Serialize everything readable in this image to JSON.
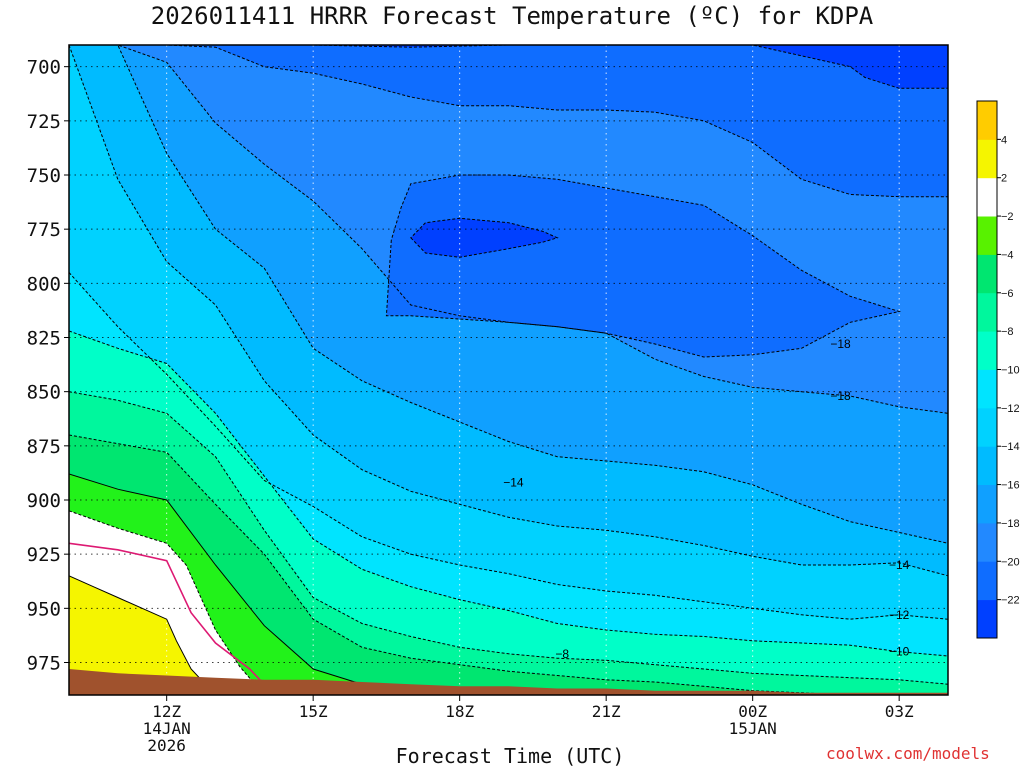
{
  "title": "2026011411 HRRR Forecast Temperature (ºC) for KDPA",
  "x_axis_title": "Forecast Time (UTC)",
  "credit": "coolwx.com/models",
  "chart_data": {
    "type": "heatmap",
    "title": "2026011411 HRRR Forecast Temperature (ºC) for KDPA",
    "xlabel": "Forecast Time (UTC)",
    "ylabel": "",
    "x_units": "hours since 11Z 14JAN2026",
    "y_units": "hPa",
    "xlim": [
      -1.0,
      17.0
    ],
    "ylim": [
      690,
      990
    ],
    "y_ticks": [
      700,
      725,
      750,
      775,
      800,
      825,
      850,
      875,
      900,
      925,
      950,
      975
    ],
    "x_ticks": [
      {
        "x": 1,
        "label": [
          "12Z",
          "14JAN",
          "2026"
        ]
      },
      {
        "x": 4,
        "label": [
          "15Z"
        ]
      },
      {
        "x": 7,
        "label": [
          "18Z"
        ]
      },
      {
        "x": 10,
        "label": [
          "21Z"
        ]
      },
      {
        "x": 13,
        "label": [
          "00Z",
          "15JAN"
        ]
      },
      {
        "x": 16,
        "label": [
          "03Z"
        ]
      }
    ],
    "grid": true,
    "colorbar": {
      "colors": [
        "#0040ff",
        "#0f6dff",
        "#2289ff",
        "#10a0ff",
        "#00bbff",
        "#00d2ff",
        "#00e4ff",
        "#00ffc8",
        "#00f79d",
        "#00e670",
        "#58f200",
        "#ffffff",
        "#f5f500",
        "#ffcc00"
      ],
      "labels": [
        {
          "v": 1,
          "t": "−22"
        },
        {
          "v": 2,
          "t": "−20"
        },
        {
          "v": 3,
          "t": "−18"
        },
        {
          "v": 4,
          "t": "−16"
        },
        {
          "v": 5,
          "t": "−14"
        },
        {
          "v": 6,
          "t": "−12"
        },
        {
          "v": 7,
          "t": "−10"
        },
        {
          "v": 8,
          "t": "−8"
        },
        {
          "v": 9,
          "t": "−6"
        },
        {
          "v": 10,
          "t": "−4"
        },
        {
          "v": 11,
          "t": "−2"
        },
        {
          "v": 12,
          "t": "2"
        },
        {
          "v": 13,
          "t": "4"
        }
      ]
    },
    "bands": [
      {
        "name": "below-minus22",
        "color": "#0f6dff",
        "level": -22,
        "line": "dashed",
        "pts": [
          [
            -1,
            690
          ],
          [
            0,
            690
          ],
          [
            2,
            690
          ],
          [
            4,
            690
          ],
          [
            6,
            691
          ],
          [
            8,
            690
          ],
          [
            10,
            690
          ],
          [
            12,
            690
          ],
          [
            13,
            690
          ],
          [
            14,
            695
          ],
          [
            15,
            700
          ],
          [
            15.3,
            705
          ],
          [
            16,
            710
          ],
          [
            17,
            710
          ]
        ]
      },
      {
        "name": "below-minus20",
        "color": "#2289ff",
        "level": -20,
        "line": "dashed",
        "pts": [
          [
            -1,
            690
          ],
          [
            0,
            690
          ],
          [
            1,
            690
          ],
          [
            2,
            691
          ],
          [
            3,
            700
          ],
          [
            4,
            703
          ],
          [
            5,
            708
          ],
          [
            6,
            714
          ],
          [
            7,
            718
          ],
          [
            8,
            718
          ],
          [
            9,
            720
          ],
          [
            10,
            720
          ],
          [
            11,
            721
          ],
          [
            12,
            725
          ],
          [
            13,
            735
          ],
          [
            14,
            752
          ],
          [
            15,
            759
          ],
          [
            16,
            760
          ],
          [
            17,
            760
          ]
        ]
      },
      {
        "name": "below-minus18",
        "color": "#10a0ff",
        "level": -18,
        "line": "dashed",
        "pts": [
          [
            -1,
            690
          ],
          [
            0,
            690
          ],
          [
            1,
            698
          ],
          [
            2,
            726
          ],
          [
            3,
            745
          ],
          [
            4,
            762
          ],
          [
            5,
            784
          ],
          [
            6,
            810
          ],
          [
            7,
            815
          ],
          [
            8,
            818
          ],
          [
            9,
            820
          ],
          [
            10,
            823
          ],
          [
            11,
            835
          ],
          [
            12,
            843
          ],
          [
            13,
            848
          ],
          [
            14,
            850
          ],
          [
            15,
            852
          ],
          [
            16,
            857
          ],
          [
            17,
            860
          ]
        ]
      },
      {
        "name": "below-minus16",
        "color": "#00bbff",
        "level": -16,
        "line": "dashed",
        "pts": [
          [
            -1,
            690
          ],
          [
            0,
            690
          ],
          [
            1,
            740
          ],
          [
            2,
            775
          ],
          [
            3,
            793
          ],
          [
            4,
            830
          ],
          [
            5,
            845
          ],
          [
            6,
            855
          ],
          [
            7,
            864
          ],
          [
            8,
            873
          ],
          [
            9,
            880
          ],
          [
            10,
            882
          ],
          [
            11,
            884
          ],
          [
            12,
            887
          ],
          [
            13,
            893
          ],
          [
            14,
            902
          ],
          [
            15,
            910
          ],
          [
            16,
            915
          ],
          [
            17,
            920
          ]
        ]
      },
      {
        "name": "below-minus14",
        "color": "#00d2ff",
        "level": -14,
        "line": "dashed",
        "pts": [
          [
            -1,
            690
          ],
          [
            0,
            752
          ],
          [
            1,
            790
          ],
          [
            2,
            810
          ],
          [
            3,
            845
          ],
          [
            4,
            870
          ],
          [
            5,
            886
          ],
          [
            6,
            896
          ],
          [
            7,
            902
          ],
          [
            8,
            908
          ],
          [
            9,
            912
          ],
          [
            10,
            914
          ],
          [
            11,
            917
          ],
          [
            12,
            921
          ],
          [
            13,
            926
          ],
          [
            14,
            930
          ],
          [
            15,
            930
          ],
          [
            16,
            929
          ],
          [
            17,
            935
          ]
        ]
      },
      {
        "name": "below-minus12",
        "color": "#00e4ff",
        "level": -12,
        "line": "dashed",
        "pts": [
          [
            -1,
            795
          ],
          [
            0,
            820
          ],
          [
            1,
            842
          ],
          [
            2,
            866
          ],
          [
            3,
            891
          ],
          [
            4,
            903
          ],
          [
            5,
            917
          ],
          [
            6,
            925
          ],
          [
            7,
            930
          ],
          [
            8,
            934
          ],
          [
            9,
            939
          ],
          [
            10,
            942
          ],
          [
            11,
            944
          ],
          [
            12,
            947
          ],
          [
            13,
            950
          ],
          [
            14,
            953
          ],
          [
            15,
            955
          ],
          [
            16,
            953
          ],
          [
            17,
            955
          ]
        ]
      },
      {
        "name": "below-minus10",
        "color": "#00ffc8",
        "level": -10,
        "line": "dashed",
        "pts": [
          [
            -1,
            822
          ],
          [
            0,
            830
          ],
          [
            1,
            837
          ],
          [
            2,
            860
          ],
          [
            3,
            889
          ],
          [
            4,
            918
          ],
          [
            5,
            932
          ],
          [
            6,
            940
          ],
          [
            7,
            946
          ],
          [
            8,
            951
          ],
          [
            9,
            957
          ],
          [
            10,
            960
          ],
          [
            11,
            962
          ],
          [
            12,
            963
          ],
          [
            13,
            965
          ],
          [
            14,
            966
          ],
          [
            15,
            967
          ],
          [
            16,
            970
          ],
          [
            17,
            972
          ]
        ]
      },
      {
        "name": "below-minus8",
        "color": "#00f79d",
        "level": -8,
        "line": "dashed",
        "pts": [
          [
            -1,
            850
          ],
          [
            0,
            854
          ],
          [
            1,
            860
          ],
          [
            2,
            880
          ],
          [
            3,
            914
          ],
          [
            4,
            945
          ],
          [
            5,
            957
          ],
          [
            6,
            963
          ],
          [
            7,
            968
          ],
          [
            8,
            971
          ],
          [
            9,
            973
          ],
          [
            10,
            974
          ],
          [
            11,
            976
          ],
          [
            12,
            978
          ],
          [
            13,
            980
          ],
          [
            14,
            981
          ],
          [
            15,
            982
          ],
          [
            16,
            983
          ],
          [
            17,
            985
          ]
        ]
      },
      {
        "name": "below-minus6",
        "color": "#00e670",
        "level": -6,
        "line": "dashed",
        "pts": [
          [
            -1,
            870
          ],
          [
            0,
            874
          ],
          [
            1,
            878
          ],
          [
            2,
            902
          ],
          [
            3,
            925
          ],
          [
            4,
            955
          ],
          [
            5,
            968
          ],
          [
            6,
            973
          ],
          [
            7,
            976
          ],
          [
            8,
            979
          ],
          [
            9,
            981
          ],
          [
            10,
            983
          ],
          [
            11,
            984
          ],
          [
            12,
            986
          ],
          [
            13,
            988
          ],
          [
            14,
            989
          ],
          [
            15,
            990
          ],
          [
            16,
            990
          ],
          [
            17,
            990
          ]
        ]
      },
      {
        "name": "below-minus4",
        "color": "#22f21a",
        "level": -4,
        "line": "solid",
        "pts": [
          [
            -1,
            888
          ],
          [
            0,
            895
          ],
          [
            1,
            900
          ],
          [
            2,
            930
          ],
          [
            3,
            958
          ],
          [
            4,
            978
          ],
          [
            5,
            985
          ],
          [
            6,
            988
          ],
          [
            7,
            990
          ],
          [
            8,
            990
          ],
          [
            9,
            990
          ],
          [
            10,
            990
          ],
          [
            11,
            990
          ],
          [
            12,
            990
          ],
          [
            13,
            990
          ],
          [
            14,
            990
          ],
          [
            15,
            990
          ],
          [
            16,
            990
          ],
          [
            17,
            990
          ]
        ]
      },
      {
        "name": "below-minus2",
        "color": "#ffffff",
        "level": -2,
        "line": "dashed",
        "pts": [
          [
            -1,
            905
          ],
          [
            -0.5,
            909
          ],
          [
            0,
            913
          ],
          [
            1,
            920
          ],
          [
            1.4,
            930
          ],
          [
            2,
            960
          ],
          [
            2.5,
            977
          ],
          [
            3,
            990
          ],
          [
            17,
            990
          ]
        ]
      },
      {
        "name": "above-plus2",
        "color": "#f5f500",
        "level": 2,
        "line": "solid",
        "pts": [
          [
            -1,
            935
          ],
          [
            -0.5,
            940
          ],
          [
            0,
            945
          ],
          [
            1,
            955
          ],
          [
            1.2,
            965
          ],
          [
            1.5,
            978
          ],
          [
            2,
            990
          ],
          [
            17,
            990
          ]
        ]
      }
    ],
    "closed_regions": [
      {
        "name": "pocket-minus20",
        "color": "#0f6dff",
        "level": -20,
        "pts": [
          [
            5.6,
            780
          ],
          [
            5.5,
            815
          ],
          [
            6,
            815
          ],
          [
            8,
            818
          ],
          [
            9,
            820
          ],
          [
            10,
            823
          ],
          [
            11,
            828
          ],
          [
            12,
            834
          ],
          [
            13,
            833
          ],
          [
            14,
            830
          ],
          [
            15,
            818
          ],
          [
            16,
            813
          ],
          [
            15,
            806
          ],
          [
            14,
            794
          ],
          [
            13,
            778
          ],
          [
            12,
            764
          ],
          [
            11,
            760
          ],
          [
            10,
            756
          ],
          [
            9,
            752
          ],
          [
            8,
            750
          ],
          [
            7,
            750
          ],
          [
            6,
            754
          ],
          [
            5.8,
            765
          ]
        ]
      },
      {
        "name": "pocket-minus22",
        "color": "#0040ff",
        "level": -22,
        "pts": [
          [
            6,
            779
          ],
          [
            6.3,
            786
          ],
          [
            7,
            788
          ],
          [
            8,
            784
          ],
          [
            8.7,
            781
          ],
          [
            9,
            779
          ],
          [
            8.7,
            776
          ],
          [
            8,
            772
          ],
          [
            7,
            770
          ],
          [
            6.3,
            772
          ]
        ]
      }
    ],
    "freezing_line": {
      "name": "zero-degree-isotherm",
      "color": "#dd1a73",
      "pts": [
        [
          -1,
          920
        ],
        [
          0,
          923
        ],
        [
          1,
          928
        ],
        [
          1.5,
          952
        ],
        [
          2,
          966
        ],
        [
          2.7,
          978
        ],
        [
          3.2,
          990
        ]
      ]
    },
    "terrain": {
      "name": "terrain",
      "color": "#a0522d",
      "pts": [
        [
          -1,
          978
        ],
        [
          0,
          980
        ],
        [
          1,
          981
        ],
        [
          2,
          982
        ],
        [
          3,
          983
        ],
        [
          4,
          983
        ],
        [
          5,
          984
        ],
        [
          6,
          985
        ],
        [
          7,
          986
        ],
        [
          8,
          986
        ],
        [
          9,
          987
        ],
        [
          10,
          987
        ],
        [
          11,
          988
        ],
        [
          12,
          988
        ],
        [
          13,
          988
        ],
        [
          14,
          989
        ],
        [
          15,
          989
        ],
        [
          16,
          989
        ],
        [
          17,
          989
        ]
      ]
    },
    "contour_labels": [
      {
        "text": "−18",
        "x": 14.8,
        "p": 828
      },
      {
        "text": "−18",
        "x": 14.8,
        "p": 852
      },
      {
        "text": "−14",
        "x": 8.1,
        "p": 892
      },
      {
        "text": "−14",
        "x": 16,
        "p": 930
      },
      {
        "text": "−12",
        "x": 16,
        "p": 953
      },
      {
        "text": "−10",
        "x": 16,
        "p": 970
      },
      {
        "text": "−8",
        "x": 9.1,
        "p": 971
      }
    ]
  }
}
